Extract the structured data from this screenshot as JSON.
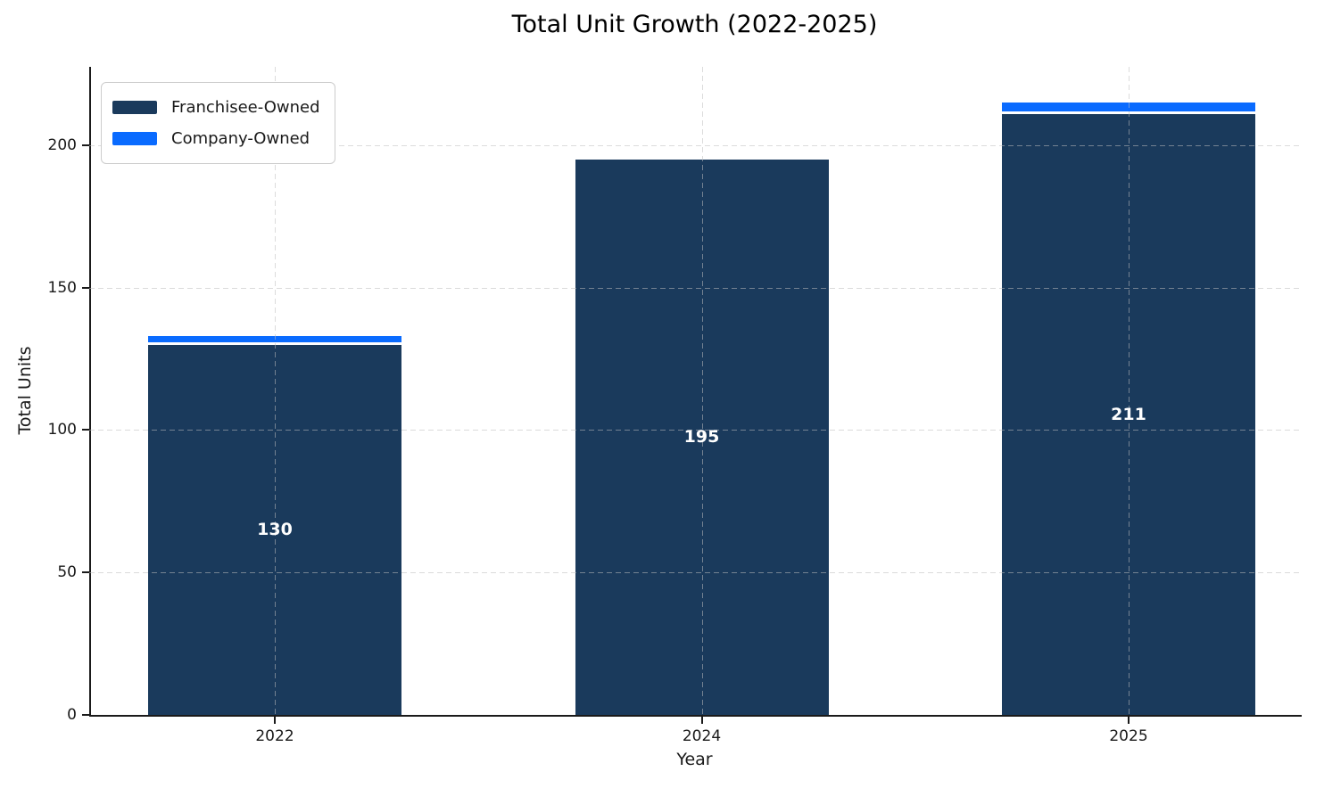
{
  "chart_data": {
    "type": "bar",
    "stacked": true,
    "title": "Total Unit Growth (2022-2025)",
    "xlabel": "Year",
    "ylabel": "Total Units",
    "categories": [
      "2022",
      "2024",
      "2025"
    ],
    "series": [
      {
        "name": "Franchisee-Owned",
        "color": "#1a3a5c",
        "values": [
          130,
          195,
          211
        ]
      },
      {
        "name": "Company-Owned",
        "color": "#0a6bff",
        "values": [
          2,
          0,
          3
        ]
      }
    ],
    "bar_labels": [
      "130",
      "195",
      "211"
    ],
    "bar_label_color": "#ffffff",
    "yticks": [
      0,
      50,
      100,
      150,
      200
    ],
    "ylim": [
      0,
      227.5
    ],
    "grid": true,
    "grid_style": "dashed",
    "legend_position": "upper-left",
    "background_color": "#ffffff"
  }
}
